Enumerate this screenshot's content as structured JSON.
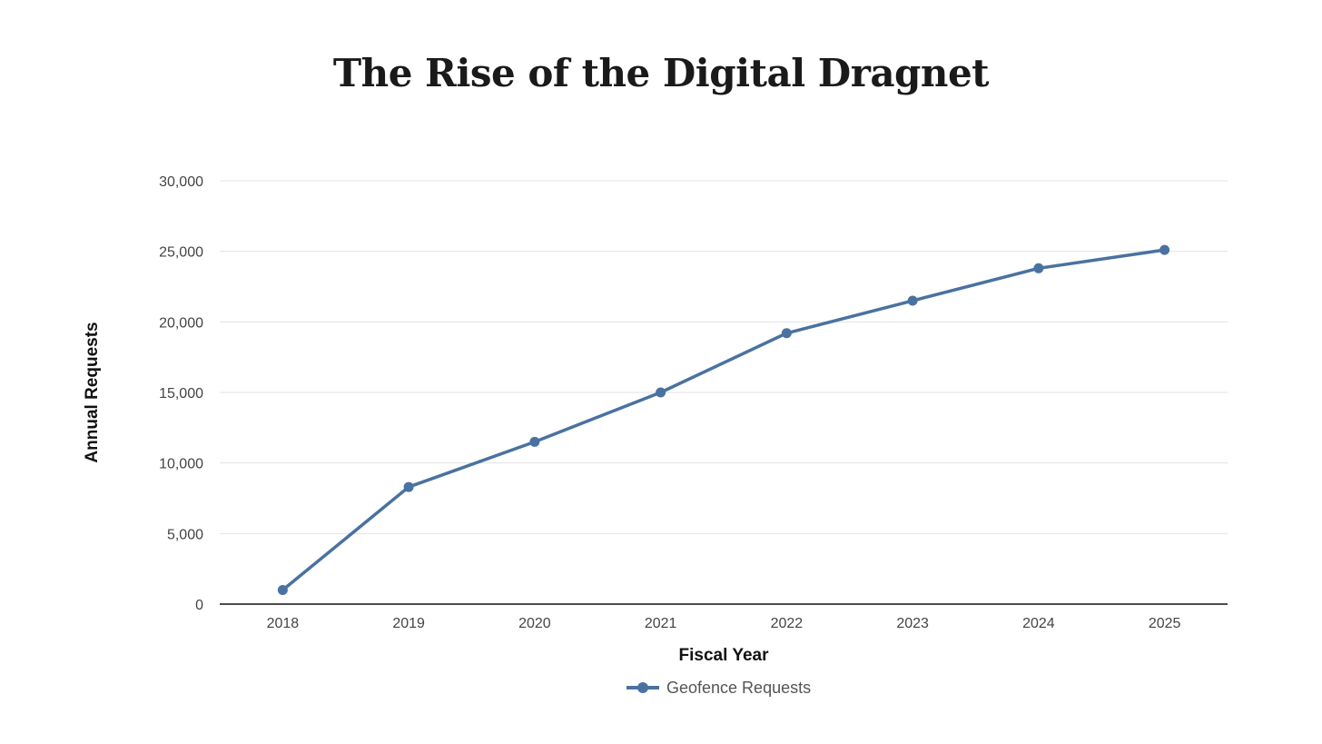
{
  "chart_data": {
    "type": "line",
    "title": "The Rise of the Digital Dragnet",
    "xlabel": "Fiscal Year",
    "ylabel": "Annual Requests",
    "categories": [
      "2018",
      "2019",
      "2020",
      "2021",
      "2022",
      "2023",
      "2024",
      "2025"
    ],
    "series": [
      {
        "name": "Geofence Requests",
        "values": [
          1000,
          8300,
          11500,
          15000,
          19200,
          21500,
          23800,
          25100
        ],
        "color": "#4a72a0"
      }
    ],
    "ylim": [
      0,
      30000
    ],
    "yticks": [
      0,
      5000,
      10000,
      15000,
      20000,
      25000,
      30000
    ],
    "ytick_labels": [
      "0",
      "5,000",
      "10,000",
      "15,000",
      "20,000",
      "25,000",
      "30,000"
    ],
    "grid": true,
    "legend_position": "bottom-center"
  }
}
